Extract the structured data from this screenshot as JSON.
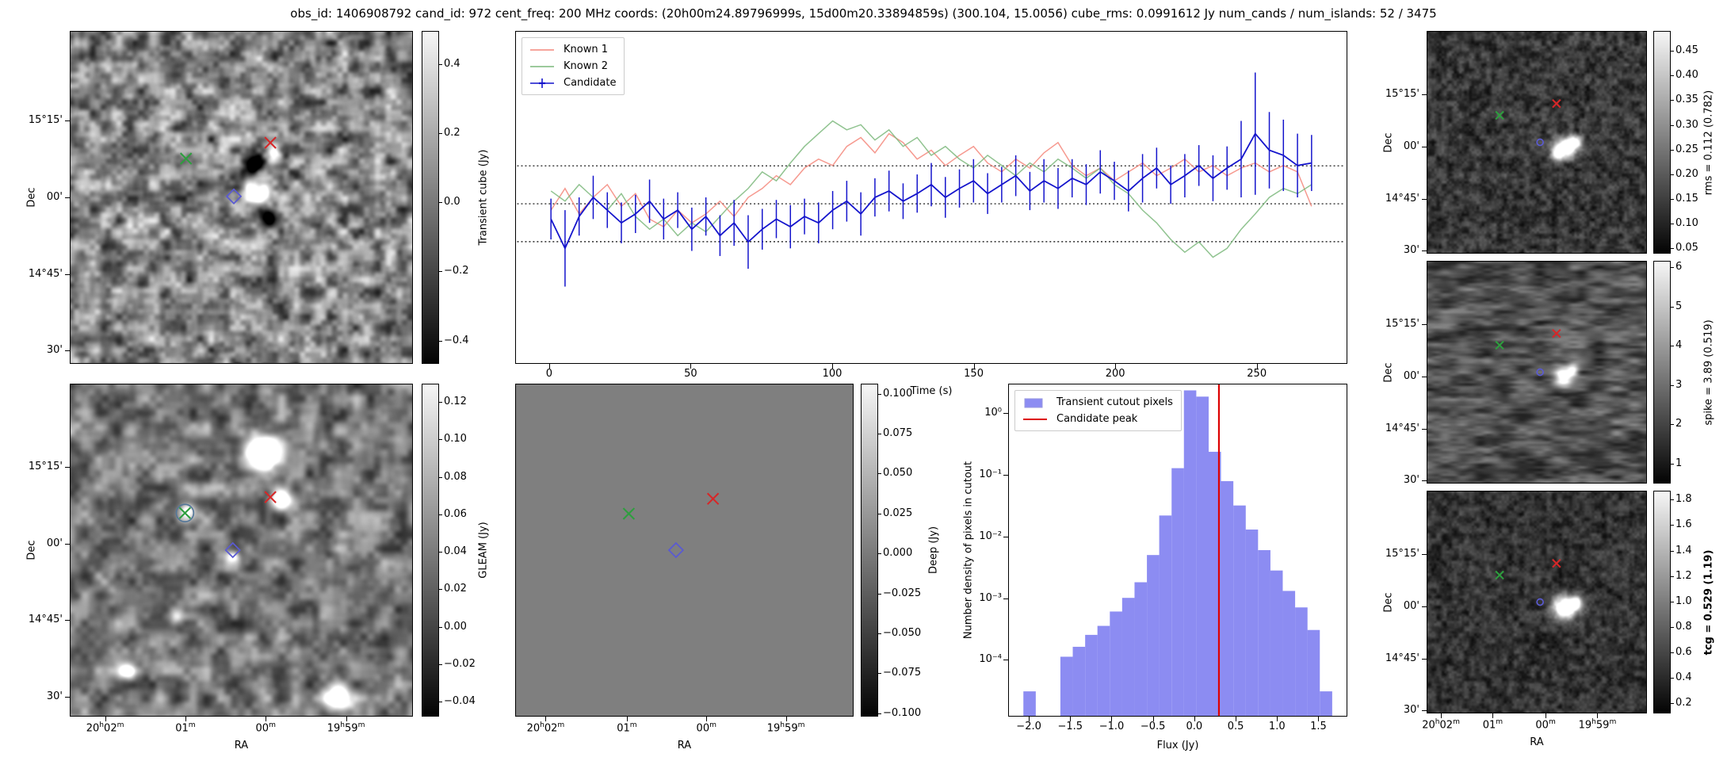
{
  "title": "obs_id: 1406908792 cand_id: 972 cent_freq: 200 MHz coords: (20h00m24.89796999s, 15d00m20.33894859s) (300.104, 15.0056) cube_rms: 0.0991612 Jy num_cands / num_islands: 52 / 3475",
  "colors": {
    "known1": "#f4877b",
    "known2": "#7cb87c",
    "candidate": "#1414cc",
    "hist_fill": "#8c8cf2",
    "peak_line": "#dd0000",
    "marker_green": "#2e9e3e",
    "marker_red": "#d62728",
    "marker_blue": "#5a5ad2",
    "threshold_line": "#000000"
  },
  "chart_data": [
    {
      "id": "transient_cube",
      "type": "heatmap",
      "panel": "top-left",
      "ylabel": "Dec",
      "xlabel": "",
      "y_tick_labels": [
        "15°15'",
        "00'",
        "14°45'",
        "30'"
      ],
      "x_tick_labels": [],
      "colorbar_label": "Transient cube (Jy)",
      "colorbar_ticks": [
        "0.4",
        "0.2",
        "0.0",
        "−0.2",
        "−0.4"
      ],
      "markers": [
        {
          "shape": "x",
          "color": "#2e9e3e",
          "fx": 0.338,
          "fy": 0.383,
          "size": 7
        },
        {
          "shape": "x",
          "color": "#d62728",
          "fx": 0.585,
          "fy": 0.335,
          "size": 7
        },
        {
          "shape": "diamond",
          "color": "#5a5ad2",
          "fx": 0.478,
          "fy": 0.497,
          "size": 9
        }
      ]
    },
    {
      "id": "lightcurve",
      "type": "line",
      "panel": "top-middle",
      "xlabel": "Time (s)",
      "x_ticks": [
        0,
        50,
        100,
        150,
        200,
        250
      ],
      "x_tick_labels": [
        "0",
        "50",
        "100",
        "150",
        "200",
        "250"
      ],
      "xlim": [
        -12,
        282
      ],
      "ylim": [
        -1.25,
        1.35
      ],
      "threshold_lines": [
        0.2975,
        0.0,
        -0.2975
      ],
      "legend": [
        "Known 1",
        "Known 2",
        "Candidate"
      ],
      "t": [
        0,
        5,
        10,
        15,
        20,
        25,
        30,
        35,
        40,
        45,
        50,
        55,
        60,
        65,
        70,
        75,
        80,
        85,
        90,
        95,
        100,
        105,
        110,
        115,
        120,
        125,
        130,
        135,
        140,
        145,
        150,
        155,
        160,
        165,
        170,
        175,
        180,
        185,
        190,
        195,
        200,
        205,
        210,
        215,
        220,
        225,
        230,
        235,
        240,
        245,
        250,
        255,
        260,
        265,
        270
      ],
      "series": [
        {
          "name": "Known 1",
          "color_key": "known1",
          "y": [
            -0.05,
            0.12,
            -0.08,
            0.05,
            0.15,
            -0.02,
            0.08,
            -0.12,
            -0.18,
            -0.05,
            -0.15,
            -0.08,
            0.02,
            -0.1,
            0.05,
            0.12,
            0.22,
            0.15,
            0.28,
            0.35,
            0.3,
            0.45,
            0.52,
            0.4,
            0.55,
            0.48,
            0.35,
            0.42,
            0.3,
            0.38,
            0.45,
            0.32,
            0.25,
            0.35,
            0.28,
            0.4,
            0.48,
            0.3,
            0.22,
            0.28,
            0.18,
            0.25,
            0.32,
            0.22,
            0.28,
            0.35,
            0.25,
            0.3,
            0.22,
            0.28,
            0.32,
            0.25,
            0.3,
            0.25,
            -0.02
          ]
        },
        {
          "name": "Known 2",
          "color_key": "known2",
          "y": [
            0.1,
            0.02,
            0.15,
            0.05,
            -0.05,
            0.08,
            -0.1,
            -0.2,
            -0.12,
            -0.25,
            -0.15,
            -0.22,
            -0.1,
            0.02,
            0.12,
            0.25,
            0.18,
            0.32,
            0.45,
            0.55,
            0.65,
            0.58,
            0.62,
            0.5,
            0.58,
            0.45,
            0.52,
            0.38,
            0.45,
            0.35,
            0.28,
            0.38,
            0.3,
            0.22,
            0.32,
            0.25,
            0.35,
            0.28,
            0.2,
            0.28,
            0.15,
            0.08,
            -0.05,
            -0.15,
            -0.28,
            -0.38,
            -0.3,
            -0.42,
            -0.35,
            -0.2,
            -0.08,
            0.05,
            0.12,
            0.08,
            0.15
          ]
        },
        {
          "name": "Candidate",
          "color_key": "candidate",
          "y": [
            -0.12,
            -0.35,
            -0.1,
            0.05,
            -0.05,
            -0.15,
            -0.08,
            0.02,
            -0.12,
            -0.05,
            -0.2,
            -0.1,
            -0.25,
            -0.15,
            -0.3,
            -0.2,
            -0.12,
            -0.18,
            -0.1,
            -0.15,
            -0.05,
            0.02,
            -0.08,
            0.05,
            0.1,
            0.02,
            0.08,
            0.15,
            0.05,
            0.12,
            0.18,
            0.08,
            0.15,
            0.22,
            0.1,
            0.18,
            0.12,
            0.2,
            0.15,
            0.25,
            0.18,
            0.1,
            0.2,
            0.28,
            0.15,
            0.22,
            0.3,
            0.2,
            0.28,
            0.35,
            0.55,
            0.42,
            0.38,
            0.3,
            0.32
          ],
          "yerr": [
            0.16,
            0.3,
            0.15,
            0.17,
            0.14,
            0.16,
            0.15,
            0.17,
            0.16,
            0.14,
            0.17,
            0.15,
            0.16,
            0.18,
            0.21,
            0.16,
            0.15,
            0.17,
            0.14,
            0.16,
            0.15,
            0.16,
            0.17,
            0.15,
            0.16,
            0.14,
            0.15,
            0.17,
            0.16,
            0.15,
            0.17,
            0.16,
            0.14,
            0.16,
            0.15,
            0.17,
            0.16,
            0.15,
            0.16,
            0.17,
            0.15,
            0.16,
            0.19,
            0.16,
            0.15,
            0.17,
            0.16,
            0.18,
            0.17,
            0.3,
            0.48,
            0.3,
            0.28,
            0.25,
            0.22
          ]
        }
      ]
    },
    {
      "id": "rms",
      "type": "heatmap",
      "panel": "right-top",
      "ylabel": "Dec",
      "xlabel": "",
      "y_tick_labels": [
        "15°15'",
        "00'",
        "14°45'",
        "30'"
      ],
      "x_tick_labels": [],
      "colorbar_label": "rms = 0.112 (0.782)",
      "colorbar_ticks": [
        "0.45",
        "0.40",
        "0.35",
        "0.30",
        "0.25",
        "0.20",
        "0.15",
        "0.10",
        "0.05"
      ],
      "markers": [
        {
          "shape": "x",
          "color": "#2e9e3e",
          "fx": 0.33,
          "fy": 0.378,
          "size": 5
        },
        {
          "shape": "x",
          "color": "#d62728",
          "fx": 0.59,
          "fy": 0.325,
          "size": 5
        },
        {
          "shape": "circle",
          "color": "#5a5ad2",
          "fx": 0.515,
          "fy": 0.5,
          "size": 4
        }
      ]
    },
    {
      "id": "gleam",
      "type": "heatmap",
      "panel": "bottom-left",
      "ylabel": "Dec",
      "xlabel": "RA",
      "y_tick_labels": [
        "15°15'",
        "00'",
        "14°45'",
        "30'"
      ],
      "x_tick_labels": [
        "20h02m",
        "01m",
        "00m",
        "19h59m"
      ],
      "colorbar_label": "GLEAM (Jy)",
      "colorbar_ticks": [
        "0.12",
        "0.10",
        "0.08",
        "0.06",
        "0.04",
        "0.02",
        "0.00",
        "−0.02",
        "−0.04"
      ],
      "markers": [
        {
          "shape": "x",
          "color": "#2e9e3e",
          "fx": 0.335,
          "fy": 0.388,
          "size": 7
        },
        {
          "shape": "circle",
          "color": "#557799",
          "fx": 0.335,
          "fy": 0.388,
          "size": 11
        },
        {
          "shape": "x",
          "color": "#d62728",
          "fx": 0.585,
          "fy": 0.34,
          "size": 7
        },
        {
          "shape": "diamond",
          "color": "#5a5ad2",
          "fx": 0.475,
          "fy": 0.5,
          "size": 9
        }
      ]
    },
    {
      "id": "deep",
      "type": "heatmap",
      "panel": "bottom-middle",
      "flat": true,
      "ylabel": "",
      "xlabel": "RA",
      "y_tick_labels": [],
      "x_tick_labels": [
        "20h02m",
        "01m",
        "00m",
        "19h59m"
      ],
      "colorbar_label": "Deep (Jy)",
      "colorbar_ticks": [
        "0.100",
        "0.075",
        "0.050",
        "0.025",
        "0.000",
        "−0.025",
        "−0.050",
        "−0.075",
        "−0.100"
      ],
      "markers": [
        {
          "shape": "x",
          "color": "#2e9e3e",
          "fx": 0.335,
          "fy": 0.39,
          "size": 7
        },
        {
          "shape": "x",
          "color": "#d62728",
          "fx": 0.585,
          "fy": 0.345,
          "size": 7
        },
        {
          "shape": "diamond",
          "color": "#5a5ad2",
          "fx": 0.475,
          "fy": 0.5,
          "size": 9
        }
      ]
    },
    {
      "id": "histogram",
      "type": "bar",
      "panel": "bottom-right",
      "xlabel": "Flux (Jy)",
      "ylabel": "Number density of pixels in cutout",
      "x_ticks": [
        -2.0,
        -1.5,
        -1.0,
        -0.5,
        0.0,
        0.5,
        1.0,
        1.5
      ],
      "x_tick_labels": [
        "−2.0",
        "−1.5",
        "−1.0",
        "−0.5",
        "0.0",
        "0.5",
        "1.0",
        "1.5"
      ],
      "xlim": [
        -2.25,
        1.85
      ],
      "ylim_log": [
        1.2e-05,
        3.0
      ],
      "y_ticks": [
        {
          "label": "10⁰",
          "value": 1
        },
        {
          "label": "10⁻¹",
          "value": 0.1
        },
        {
          "label": "10⁻²",
          "value": 0.01
        },
        {
          "label": "10⁻³",
          "value": 0.001
        },
        {
          "label": "10⁻⁴",
          "value": 0.0001
        }
      ],
      "bin_width": 0.15,
      "bin_centers": [
        -2.0,
        -1.85,
        -1.7,
        -1.55,
        -1.4,
        -1.25,
        -1.1,
        -0.95,
        -0.8,
        -0.65,
        -0.5,
        -0.35,
        -0.2,
        -0.05,
        0.1,
        0.25,
        0.4,
        0.55,
        0.7,
        0.85,
        1.0,
        1.15,
        1.3,
        1.45,
        1.6
      ],
      "densities": [
        3e-05,
        0,
        0,
        0.00011,
        0.00016,
        0.00025,
        0.00035,
        0.0006,
        0.001,
        0.0018,
        0.005,
        0.022,
        0.13,
        2.4,
        1.9,
        0.24,
        0.08,
        0.032,
        0.013,
        0.006,
        0.0028,
        0.0013,
        0.0007,
        0.0003,
        3e-05
      ],
      "candidate_peak": 0.3,
      "legend": [
        {
          "label": "Transient cutout pixels",
          "type": "patch"
        },
        {
          "label": "Candidate peak",
          "type": "line"
        }
      ]
    },
    {
      "id": "spike",
      "type": "heatmap",
      "panel": "right-middle",
      "ylabel": "Dec",
      "xlabel": "",
      "y_tick_labels": [
        "15°15'",
        "00'",
        "14°45'",
        "30'"
      ],
      "x_tick_labels": [],
      "colorbar_label": "spike = 3.89 (0.519)",
      "colorbar_ticks": [
        "6",
        "5",
        "4",
        "3",
        "2",
        "1"
      ],
      "markers": [
        {
          "shape": "x",
          "color": "#2e9e3e",
          "fx": 0.33,
          "fy": 0.378,
          "size": 5
        },
        {
          "shape": "x",
          "color": "#d62728",
          "fx": 0.59,
          "fy": 0.325,
          "size": 5
        },
        {
          "shape": "circle",
          "color": "#5a5ad2",
          "fx": 0.515,
          "fy": 0.5,
          "size": 4
        }
      ]
    },
    {
      "id": "tcg",
      "type": "heatmap",
      "panel": "right-bottom",
      "ylabel": "Dec",
      "xlabel": "RA",
      "y_tick_labels": [
        "15°15'",
        "00'",
        "14°45'",
        "30'"
      ],
      "x_tick_labels": [
        "20h02m",
        "01m",
        "00m",
        "19h59m"
      ],
      "colorbar_label": "tcg = 0.529 (1.19)",
      "colorbar_label_bold": true,
      "colorbar_ticks": [
        "1.8",
        "1.6",
        "1.4",
        "1.2",
        "1.0",
        "0.8",
        "0.6",
        "0.4",
        "0.2"
      ],
      "markers": [
        {
          "shape": "x",
          "color": "#2e9e3e",
          "fx": 0.33,
          "fy": 0.378,
          "size": 5
        },
        {
          "shape": "x",
          "color": "#d62728",
          "fx": 0.59,
          "fy": 0.325,
          "size": 5
        },
        {
          "shape": "circle",
          "color": "#5a5ad2",
          "fx": 0.515,
          "fy": 0.5,
          "size": 4
        }
      ]
    }
  ]
}
